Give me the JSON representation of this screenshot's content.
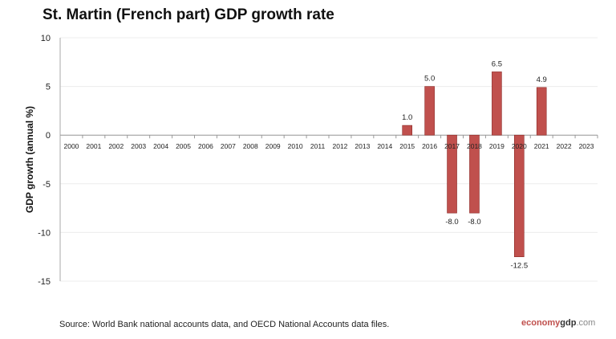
{
  "chart_data": {
    "type": "bar",
    "title": "St. Martin (French part) GDP growth rate",
    "xlabel": "",
    "ylabel": "GDP growth (annual %)",
    "ylim": [
      -15,
      10
    ],
    "yticks": [
      10,
      5,
      0,
      -5,
      -10,
      -15
    ],
    "grid": true,
    "categories": [
      "2000",
      "2001",
      "2002",
      "2003",
      "2004",
      "2005",
      "2006",
      "2007",
      "2008",
      "2009",
      "2010",
      "2011",
      "2012",
      "2013",
      "2014",
      "2015",
      "2016",
      "2017",
      "2018",
      "2019",
      "2020",
      "2021",
      "2022",
      "2023"
    ],
    "values": [
      null,
      null,
      null,
      null,
      null,
      null,
      null,
      null,
      null,
      null,
      null,
      null,
      null,
      null,
      null,
      1.0,
      5.0,
      -8.0,
      -8.0,
      6.5,
      -12.5,
      4.9,
      null,
      null
    ],
    "data_labels": [
      "",
      "",
      "",
      "",
      "",
      "",
      "",
      "",
      "",
      "",
      "",
      "",
      "",
      "",
      "",
      "1.0",
      "5.0",
      "-8.0",
      "-8.0",
      "6.5",
      "-12.5",
      "4.9",
      "",
      ""
    ],
    "bar_color": "#c0504d"
  },
  "footer": {
    "source": "Source:  World Bank national accounts data, and OECD National Accounts data files.",
    "logo": {
      "part1": "economy",
      "part2": "gdp",
      "part3": ".com"
    }
  }
}
